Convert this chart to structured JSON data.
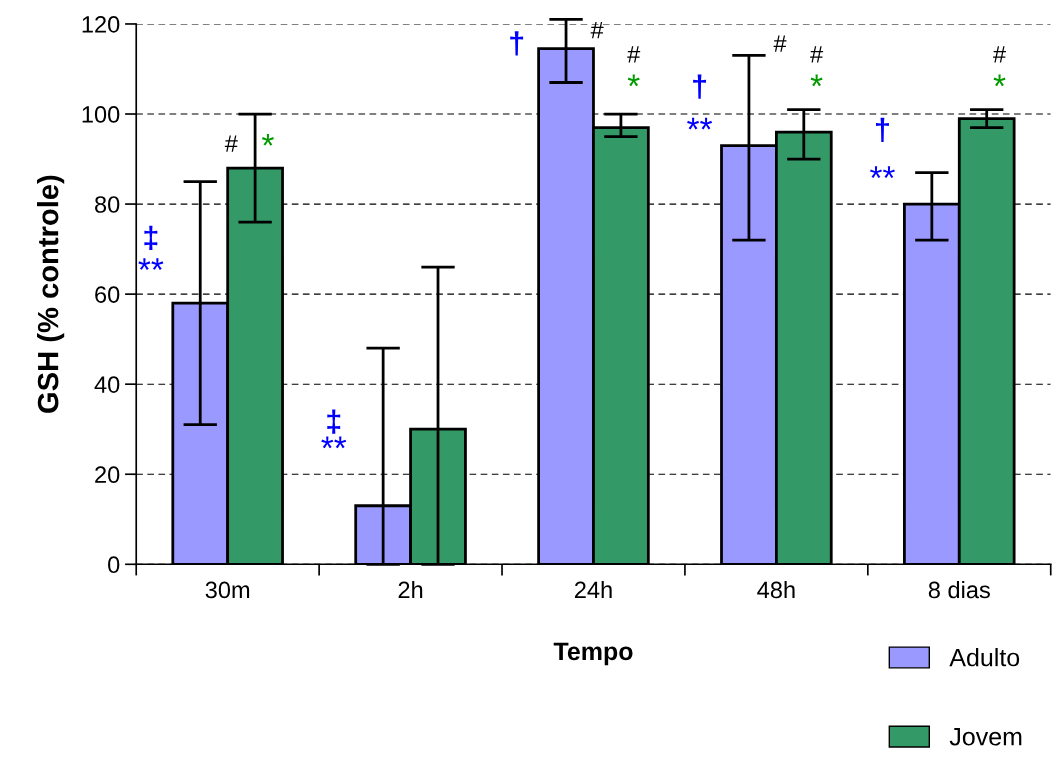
{
  "chart_data": {
    "type": "bar",
    "xlabel": "Tempo",
    "ylabel": "GSH (% controle)",
    "categories": [
      "30m",
      "2h",
      "24h",
      "48h",
      "8 dias"
    ],
    "series": [
      {
        "name": "Adulto",
        "color": "#9999ff",
        "values": [
          58,
          13,
          114.5,
          93,
          80
        ],
        "errors": [
          [
            31,
            85
          ],
          [
            0,
            48
          ],
          [
            107,
            121
          ],
          [
            72,
            113
          ],
          [
            72,
            87
          ]
        ]
      },
      {
        "name": "Jovem",
        "color": "#339966",
        "values": [
          88,
          30,
          97,
          96,
          99
        ],
        "errors": [
          [
            76,
            100
          ],
          [
            0,
            66
          ],
          [
            95,
            100
          ],
          [
            90,
            101
          ],
          [
            97,
            101
          ]
        ]
      }
    ],
    "ylim": [
      0,
      120
    ],
    "yticks": [
      0,
      20,
      40,
      60,
      80,
      100,
      120
    ],
    "grid": "y",
    "legend": "bottom right",
    "annotations": [
      "‡",
      "**",
      "#",
      "*",
      "‡",
      "**",
      "†",
      "#",
      "#",
      "*",
      "#",
      "†",
      "**",
      "#",
      "*",
      "†",
      "**",
      "#",
      "*"
    ]
  }
}
